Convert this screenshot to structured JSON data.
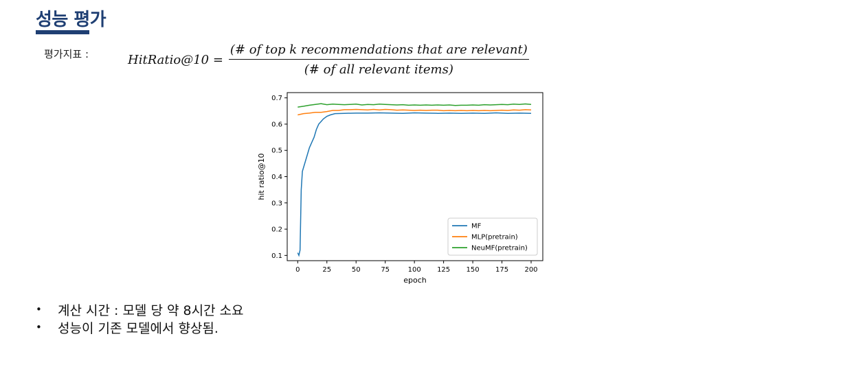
{
  "header": {
    "title": "성능 평가"
  },
  "metric": {
    "label": "평가지표 :",
    "formula_lhs": "HitRatio@10 =",
    "numerator": "(# of top k recommendations that are relevant)",
    "denominator": "(# of all relevant items)"
  },
  "bullets": [
    "계산 시간 : 모델 당 약 8시간 소요",
    "성능이 기존 모델에서 향상됨."
  ],
  "chart_data": {
    "type": "line",
    "xlabel": "epoch",
    "ylabel": "hit ratio@10",
    "xlim": [
      -9,
      210
    ],
    "ylim": [
      0.08,
      0.72
    ],
    "xticks": [
      0,
      25,
      50,
      75,
      100,
      125,
      150,
      175,
      200
    ],
    "yticks": [
      0.1,
      0.2,
      0.3,
      0.4,
      0.5,
      0.6,
      0.7
    ],
    "legend_position": "bottom-right",
    "grid": false,
    "series": [
      {
        "name": "MF",
        "color": "#1f77b4",
        "points": [
          [
            0,
            0.11
          ],
          [
            1,
            0.1
          ],
          [
            2,
            0.12
          ],
          [
            3,
            0.35
          ],
          [
            4,
            0.42
          ],
          [
            6,
            0.45
          ],
          [
            8,
            0.48
          ],
          [
            10,
            0.51
          ],
          [
            12,
            0.53
          ],
          [
            14,
            0.55
          ],
          [
            16,
            0.58
          ],
          [
            18,
            0.6
          ],
          [
            20,
            0.61
          ],
          [
            22,
            0.62
          ],
          [
            25,
            0.63
          ],
          [
            28,
            0.635
          ],
          [
            32,
            0.64
          ],
          [
            40,
            0.641
          ],
          [
            50,
            0.642
          ],
          [
            60,
            0.642
          ],
          [
            70,
            0.643
          ],
          [
            80,
            0.642
          ],
          [
            90,
            0.641
          ],
          [
            100,
            0.643
          ],
          [
            110,
            0.642
          ],
          [
            120,
            0.641
          ],
          [
            130,
            0.642
          ],
          [
            140,
            0.641
          ],
          [
            150,
            0.642
          ],
          [
            160,
            0.641
          ],
          [
            170,
            0.643
          ],
          [
            180,
            0.641
          ],
          [
            190,
            0.642
          ],
          [
            200,
            0.641
          ]
        ]
      },
      {
        "name": "MLP(pretrain)",
        "color": "#ff7f0e",
        "points": [
          [
            0,
            0.635
          ],
          [
            5,
            0.64
          ],
          [
            10,
            0.642
          ],
          [
            15,
            0.645
          ],
          [
            20,
            0.645
          ],
          [
            25,
            0.648
          ],
          [
            30,
            0.652
          ],
          [
            35,
            0.652
          ],
          [
            40,
            0.655
          ],
          [
            45,
            0.655
          ],
          [
            50,
            0.656
          ],
          [
            55,
            0.655
          ],
          [
            60,
            0.654
          ],
          [
            65,
            0.656
          ],
          [
            70,
            0.654
          ],
          [
            75,
            0.656
          ],
          [
            80,
            0.655
          ],
          [
            85,
            0.653
          ],
          [
            90,
            0.654
          ],
          [
            95,
            0.653
          ],
          [
            100,
            0.652
          ],
          [
            105,
            0.653
          ],
          [
            110,
            0.652
          ],
          [
            115,
            0.653
          ],
          [
            120,
            0.653
          ],
          [
            125,
            0.651
          ],
          [
            130,
            0.652
          ],
          [
            135,
            0.651
          ],
          [
            140,
            0.652
          ],
          [
            145,
            0.651
          ],
          [
            150,
            0.652
          ],
          [
            155,
            0.651
          ],
          [
            160,
            0.652
          ],
          [
            165,
            0.651
          ],
          [
            170,
            0.652
          ],
          [
            175,
            0.653
          ],
          [
            180,
            0.652
          ],
          [
            185,
            0.654
          ],
          [
            190,
            0.653
          ],
          [
            195,
            0.655
          ],
          [
            200,
            0.654
          ]
        ]
      },
      {
        "name": "NeuMF(pretrain)",
        "color": "#2ca02c",
        "points": [
          [
            0,
            0.665
          ],
          [
            5,
            0.668
          ],
          [
            10,
            0.672
          ],
          [
            15,
            0.675
          ],
          [
            20,
            0.678
          ],
          [
            25,
            0.674
          ],
          [
            30,
            0.676
          ],
          [
            35,
            0.675
          ],
          [
            40,
            0.674
          ],
          [
            45,
            0.675
          ],
          [
            50,
            0.676
          ],
          [
            55,
            0.673
          ],
          [
            60,
            0.675
          ],
          [
            65,
            0.674
          ],
          [
            70,
            0.676
          ],
          [
            75,
            0.675
          ],
          [
            80,
            0.674
          ],
          [
            85,
            0.673
          ],
          [
            90,
            0.674
          ],
          [
            95,
            0.672
          ],
          [
            100,
            0.673
          ],
          [
            105,
            0.672
          ],
          [
            110,
            0.673
          ],
          [
            115,
            0.672
          ],
          [
            120,
            0.673
          ],
          [
            125,
            0.672
          ],
          [
            130,
            0.673
          ],
          [
            135,
            0.671
          ],
          [
            140,
            0.672
          ],
          [
            145,
            0.672
          ],
          [
            150,
            0.673
          ],
          [
            155,
            0.672
          ],
          [
            160,
            0.674
          ],
          [
            165,
            0.673
          ],
          [
            170,
            0.674
          ],
          [
            175,
            0.675
          ],
          [
            180,
            0.674
          ],
          [
            185,
            0.676
          ],
          [
            190,
            0.675
          ],
          [
            195,
            0.677
          ],
          [
            200,
            0.675
          ]
        ]
      }
    ]
  }
}
